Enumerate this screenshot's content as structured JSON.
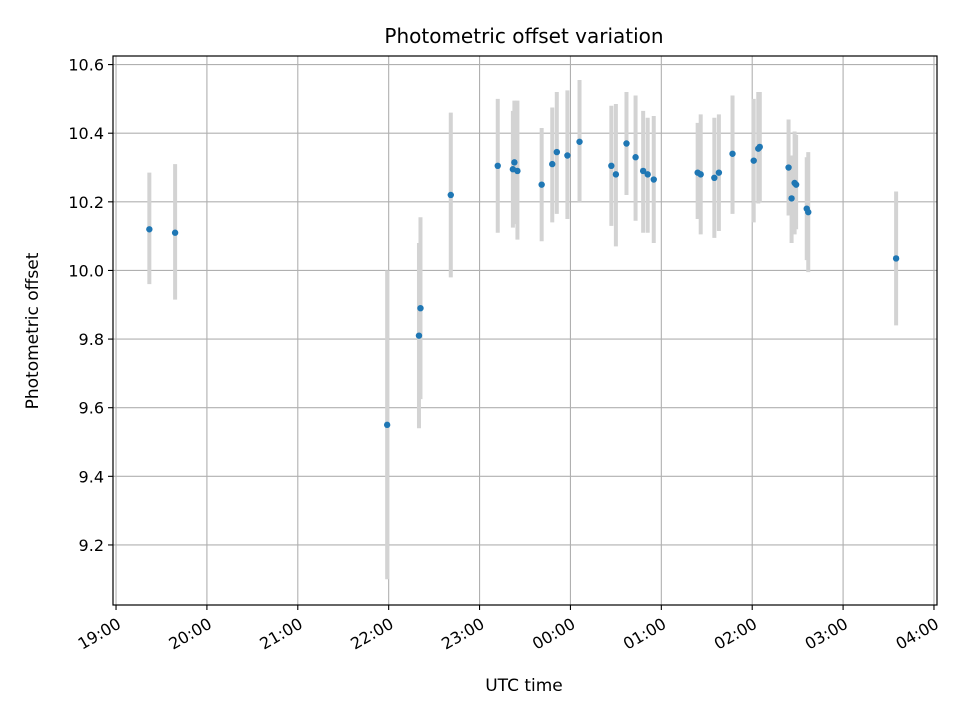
{
  "chart_data": {
    "type": "scatter",
    "title": "Photometric offset variation",
    "xlabel": "UTC time",
    "ylabel": "Photometric offset",
    "x_is_time_axis": true,
    "xlim": [
      "18:58",
      "04:02"
    ],
    "ylim": [
      9.025,
      10.625
    ],
    "x_ticks": [
      "19:00",
      "20:00",
      "21:00",
      "22:00",
      "23:00",
      "00:00",
      "01:00",
      "02:00",
      "03:00",
      "04:00"
    ],
    "y_ticks": [
      9.2,
      9.4,
      9.6,
      9.8,
      10.0,
      10.2,
      10.4,
      10.6
    ],
    "y_tick_labels": [
      "9.2",
      "9.4",
      "9.6",
      "9.8",
      "10.0",
      "10.2",
      "10.4",
      "10.6"
    ],
    "grid": true,
    "colors": {
      "point": "#1f77b4",
      "errorbar": "#d3d3d3",
      "grid": "#b0b0b0"
    },
    "points": [
      {
        "t": "19:22",
        "y": 10.12,
        "lo": 9.96,
        "hi": 10.285
      },
      {
        "t": "19:39",
        "y": 10.11,
        "lo": 9.915,
        "hi": 10.31
      },
      {
        "t": "21:59",
        "y": 9.55,
        "lo": 9.1,
        "hi": 10.0
      },
      {
        "t": "22:20",
        "y": 9.81,
        "lo": 9.54,
        "hi": 10.08
      },
      {
        "t": "22:21",
        "y": 9.89,
        "lo": 9.625,
        "hi": 10.155
      },
      {
        "t": "22:41",
        "y": 10.22,
        "lo": 9.98,
        "hi": 10.46
      },
      {
        "t": "23:12",
        "y": 10.305,
        "lo": 10.11,
        "hi": 10.5
      },
      {
        "t": "23:22",
        "y": 10.295,
        "lo": 10.125,
        "hi": 10.465
      },
      {
        "t": "23:23",
        "y": 10.315,
        "lo": 10.135,
        "hi": 10.495
      },
      {
        "t": "23:25",
        "y": 10.29,
        "lo": 10.09,
        "hi": 10.495
      },
      {
        "t": "23:41",
        "y": 10.25,
        "lo": 10.085,
        "hi": 10.415
      },
      {
        "t": "23:48",
        "y": 10.31,
        "lo": 10.14,
        "hi": 10.475
      },
      {
        "t": "23:51",
        "y": 10.345,
        "lo": 10.165,
        "hi": 10.52
      },
      {
        "t": "23:58",
        "y": 10.335,
        "lo": 10.15,
        "hi": 10.525
      },
      {
        "t": "00:06",
        "y": 10.375,
        "lo": 10.2,
        "hi": 10.555
      },
      {
        "t": "00:27",
        "y": 10.305,
        "lo": 10.13,
        "hi": 10.48
      },
      {
        "t": "00:30",
        "y": 10.28,
        "lo": 10.07,
        "hi": 10.485
      },
      {
        "t": "00:37",
        "y": 10.37,
        "lo": 10.22,
        "hi": 10.52
      },
      {
        "t": "00:43",
        "y": 10.33,
        "lo": 10.145,
        "hi": 10.51
      },
      {
        "t": "00:48",
        "y": 10.29,
        "lo": 10.11,
        "hi": 10.465
      },
      {
        "t": "00:51",
        "y": 10.28,
        "lo": 10.11,
        "hi": 10.445
      },
      {
        "t": "00:55",
        "y": 10.265,
        "lo": 10.08,
        "hi": 10.45
      },
      {
        "t": "01:24",
        "y": 10.285,
        "lo": 10.15,
        "hi": 10.43
      },
      {
        "t": "01:26",
        "y": 10.28,
        "lo": 10.105,
        "hi": 10.455
      },
      {
        "t": "01:35",
        "y": 10.27,
        "lo": 10.095,
        "hi": 10.445
      },
      {
        "t": "01:38",
        "y": 10.285,
        "lo": 10.115,
        "hi": 10.455
      },
      {
        "t": "01:47",
        "y": 10.34,
        "lo": 10.165,
        "hi": 10.51
      },
      {
        "t": "02:01",
        "y": 10.32,
        "lo": 10.14,
        "hi": 10.5
      },
      {
        "t": "02:04",
        "y": 10.355,
        "lo": 10.195,
        "hi": 10.52
      },
      {
        "t": "02:05",
        "y": 10.36,
        "lo": 10.2,
        "hi": 10.52
      },
      {
        "t": "02:24",
        "y": 10.3,
        "lo": 10.16,
        "hi": 10.44
      },
      {
        "t": "02:26",
        "y": 10.21,
        "lo": 10.08,
        "hi": 10.335
      },
      {
        "t": "02:28",
        "y": 10.255,
        "lo": 10.105,
        "hi": 10.405
      },
      {
        "t": "02:29",
        "y": 10.25,
        "lo": 10.12,
        "hi": 10.395
      },
      {
        "t": "02:36",
        "y": 10.18,
        "lo": 10.03,
        "hi": 10.33
      },
      {
        "t": "02:37",
        "y": 10.17,
        "lo": 9.995,
        "hi": 10.345
      },
      {
        "t": "03:35",
        "y": 10.035,
        "lo": 9.84,
        "hi": 10.23
      }
    ]
  }
}
